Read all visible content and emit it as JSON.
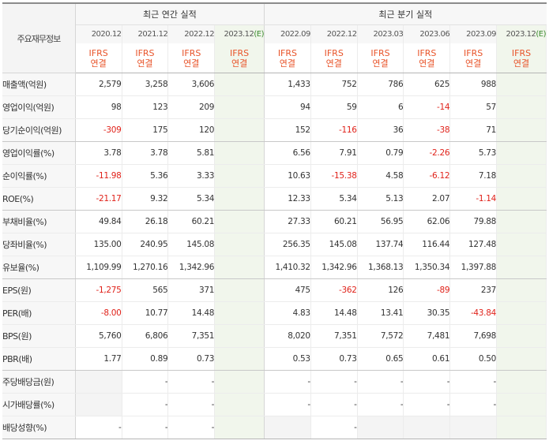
{
  "header": {
    "label": "주요재무정보",
    "annual_title": "최근 연간 실적",
    "quarter_title": "최근 분기 실적",
    "annual_periods": [
      "2020.12",
      "2021.12",
      "2022.12",
      "2023.12(E)"
    ],
    "quarter_periods": [
      "2022.09",
      "2022.12",
      "2023.03",
      "2023.06",
      "2023.09",
      "2023.12(E)"
    ],
    "standard_line1": "IFRS",
    "standard_line2": "연결"
  },
  "rows": [
    {
      "label": "매출액(억원)",
      "annual": [
        "2,579",
        "3,258",
        "3,606",
        ""
      ],
      "quarter": [
        "1,433",
        "752",
        "786",
        "625",
        "988",
        ""
      ]
    },
    {
      "label": "영업이익(억원)",
      "annual": [
        "98",
        "123",
        "209",
        ""
      ],
      "quarter": [
        "94",
        "59",
        "6",
        "-14",
        "57",
        ""
      ]
    },
    {
      "label": "당기순이익(억원)",
      "annual": [
        "-309",
        "175",
        "120",
        ""
      ],
      "quarter": [
        "152",
        "-116",
        "36",
        "-38",
        "71",
        ""
      ]
    },
    {
      "label": "영업이익률(%)",
      "annual": [
        "3.78",
        "3.78",
        "5.81",
        ""
      ],
      "quarter": [
        "6.56",
        "7.91",
        "0.79",
        "-2.26",
        "5.73",
        ""
      ]
    },
    {
      "label": "순이익률(%)",
      "annual": [
        "-11.98",
        "5.36",
        "3.33",
        ""
      ],
      "quarter": [
        "10.63",
        "-15.38",
        "4.58",
        "-6.12",
        "7.18",
        ""
      ]
    },
    {
      "label": "ROE(%)",
      "annual": [
        "-21.17",
        "9.32",
        "5.34",
        ""
      ],
      "quarter": [
        "12.33",
        "5.34",
        "5.13",
        "2.07",
        "-1.14",
        ""
      ]
    },
    {
      "label": "부채비율(%)",
      "annual": [
        "49.84",
        "26.18",
        "60.21",
        ""
      ],
      "quarter": [
        "27.33",
        "60.21",
        "56.95",
        "62.06",
        "79.88",
        ""
      ]
    },
    {
      "label": "당좌비율(%)",
      "annual": [
        "135.00",
        "240.95",
        "145.08",
        ""
      ],
      "quarter": [
        "256.35",
        "145.08",
        "137.74",
        "116.44",
        "127.48",
        ""
      ]
    },
    {
      "label": "유보율(%)",
      "annual": [
        "1,109.99",
        "1,270.16",
        "1,342.96",
        ""
      ],
      "quarter": [
        "1,410.32",
        "1,342.96",
        "1,368.13",
        "1,350.34",
        "1,397.88",
        ""
      ]
    },
    {
      "label": "EPS(원)",
      "annual": [
        "-1,275",
        "565",
        "371",
        ""
      ],
      "quarter": [
        "475",
        "-362",
        "126",
        "-89",
        "237",
        ""
      ]
    },
    {
      "label": "PER(배)",
      "annual": [
        "-8.00",
        "10.77",
        "14.48",
        ""
      ],
      "quarter": [
        "4.83",
        "14.48",
        "13.41",
        "30.35",
        "-43.84",
        ""
      ]
    },
    {
      "label": "BPS(원)",
      "annual": [
        "5,760",
        "6,806",
        "7,351",
        ""
      ],
      "quarter": [
        "8,020",
        "7,351",
        "7,572",
        "7,481",
        "7,698",
        ""
      ]
    },
    {
      "label": "PBR(배)",
      "annual": [
        "1.77",
        "0.89",
        "0.73",
        ""
      ],
      "quarter": [
        "0.53",
        "0.73",
        "0.65",
        "0.61",
        "0.50",
        ""
      ]
    },
    {
      "label": "주당배당금(원)",
      "annual": [
        "",
        "-",
        "-",
        ""
      ],
      "quarter": [
        "-",
        "-",
        "-",
        "-",
        "-",
        ""
      ]
    },
    {
      "label": "시가배당률(%)",
      "annual": [
        "",
        "-",
        "-",
        ""
      ],
      "quarter": [
        "-",
        "-",
        "-",
        "-",
        "-",
        ""
      ]
    },
    {
      "label": "배당성향(%)",
      "annual": [
        "-",
        "-",
        "-",
        ""
      ],
      "quarter": [
        "",
        "-",
        "",
        "",
        "",
        ""
      ]
    }
  ],
  "colors": {
    "negative": "#e0221a",
    "standard": "#e8542a",
    "estimate_bg": "#f1f6ec"
  }
}
